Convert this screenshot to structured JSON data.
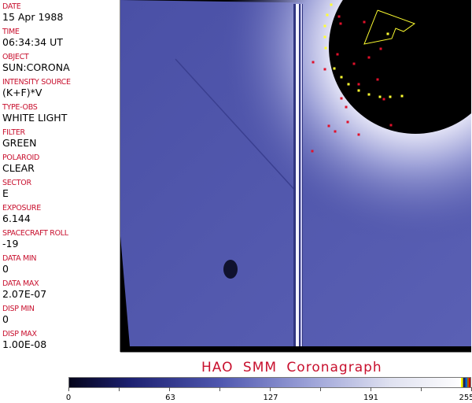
{
  "header_fields": [
    {
      "label": "DATE",
      "value": "15 Apr 1988"
    },
    {
      "label": "TIME",
      "value": "06:34:34 UT"
    },
    {
      "label": "OBJECT",
      "value": "SUN:CORONA"
    },
    {
      "label": "INTENSITY SOURCE",
      "value": "(K+F)*V"
    },
    {
      "label": "TYPE-OBS",
      "value": "WHITE LIGHT"
    },
    {
      "label": "FILTER",
      "value": "GREEN"
    },
    {
      "label": "POLAROID",
      "value": "CLEAR"
    },
    {
      "label": "SECTOR",
      "value": "E"
    },
    {
      "label": "EXPOSURE",
      "value": "6.144"
    },
    {
      "label": "SPACECRAFT ROLL",
      "value": "-19"
    },
    {
      "label": "DATA MIN",
      "value": "0"
    },
    {
      "label": "DATA MAX",
      "value": "2.07E-07"
    },
    {
      "label": "DISP MIN",
      "value": "0"
    },
    {
      "label": "DISP MAX",
      "value": "1.00E-08"
    }
  ],
  "title": "HAO  SMM  Coronagraph",
  "colorbar": {
    "ticks": [
      "0",
      "63",
      "127",
      "191",
      "255"
    ],
    "min": 0,
    "max": 255,
    "colors": {
      "dark": "#04041a",
      "mid": "#5058b0",
      "light": "#fbfbfd"
    }
  },
  "colors": {
    "label": "#c8102e",
    "image_blue": "#4a50a8",
    "marker_red": "#e0102a",
    "marker_yellow": "#ffff30"
  }
}
